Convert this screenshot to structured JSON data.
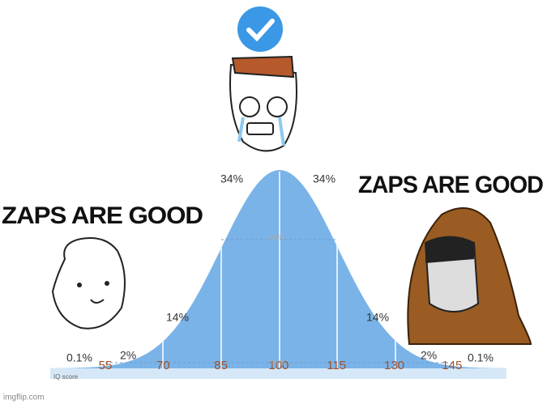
{
  "captions": [
    "ZAPS ARE GOOD",
    "ZAPS ARE GOOD"
  ],
  "percentages": {
    "left_outer": "0.1%",
    "left_tail": "2%",
    "left_mid": "14%",
    "left_center": "34%",
    "center_band": "68%",
    "right_center": "34%",
    "right_mid": "14%",
    "right_tail": "2%",
    "right_outer": "0.1%",
    "wide_band": "95%"
  },
  "axis": {
    "label": "IQ score",
    "scores": [
      "55",
      "70",
      "85",
      "100",
      "115",
      "130",
      "145"
    ]
  },
  "watermark": "imgflip.com"
}
